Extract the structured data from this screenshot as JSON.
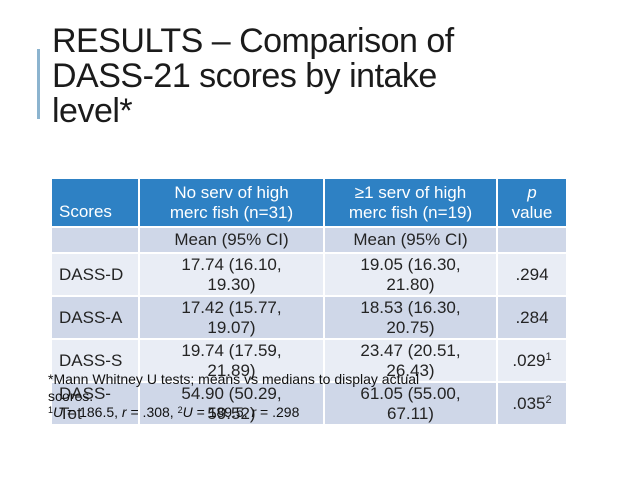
{
  "slide": {
    "title": {
      "line1": "RESULTS – Comparison of",
      "line2": "DASS-21 scores by intake",
      "line3": "level*"
    },
    "accent_color": "#8CB4CF"
  },
  "table": {
    "colors": {
      "header_bg": "#2E81C4",
      "band_dark": "#CFD7E8",
      "band_light": "#E9EDF5",
      "header_text": "#ffffff",
      "body_text": "#242424"
    },
    "header": {
      "scores": "Scores",
      "group1_line1": "No serv of high",
      "group1_line2": "merc fish (n=31)",
      "group2_line1": "≥1 serv of high",
      "group2_line2": "merc fish (n=19)",
      "p_line1": "p",
      "p_line2": "value"
    },
    "subheader": {
      "group1": "Mean (95% CI)",
      "group2": "Mean (95% CI)"
    },
    "rows": [
      {
        "label": "DASS-D",
        "group1": "17.74 (16.10, 19.30)",
        "group2": "19.05 (16.30, 21.80)",
        "p": ".294",
        "p_sup": ""
      },
      {
        "label": "DASS-A",
        "group1": "17.42 (15.77, 19.07)",
        "group2": "18.53 (16.30, 20.75)",
        "p": ".284",
        "p_sup": ""
      },
      {
        "label": "DASS-S",
        "group1": "19.74  (17.59, 21.89)",
        "group2": "23.47 (20.51, 26.43)",
        "p": ".029",
        "p_sup": "1"
      },
      {
        "label": "DASS-Tot",
        "group1": "54.90 (50.29, 59.52)",
        "group2": "61.05 (55.00, 67.11)",
        "p": ".035",
        "p_sup": "2"
      }
    ]
  },
  "footnote": {
    "line1": "*Mann Whitney U tests; means vs medians to display actual",
    "line2": "scores.",
    "stat1_sup": "1",
    "stat1_var": "U",
    "stat1_eq": " = 186.5, ",
    "stat1_rvar": "r",
    "stat1_req": " = .308, ",
    "stat2_sup": "2",
    "stat2_var": "U",
    "stat2_eq": " = 189.5, ",
    "stat2_rvar": "r",
    "stat2_req": " = .298"
  }
}
